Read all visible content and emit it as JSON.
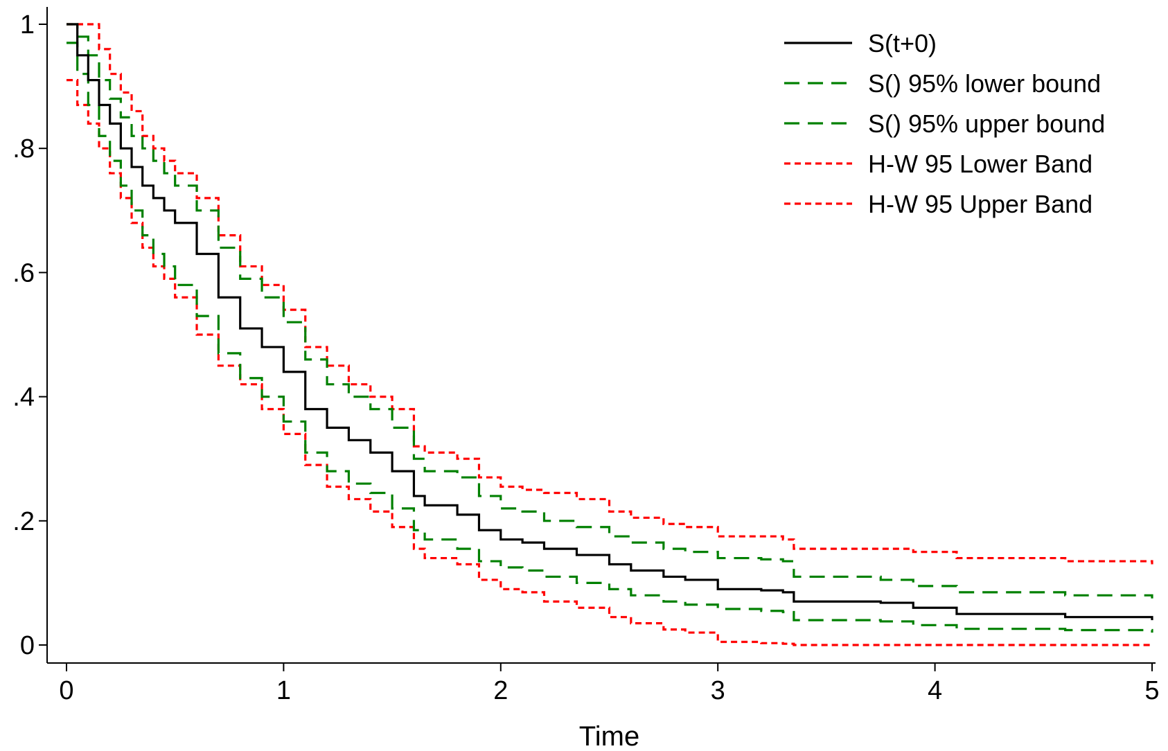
{
  "chart_data": {
    "type": "line",
    "title": "",
    "xlabel": "Time",
    "ylabel": "",
    "xlim": [
      0,
      5
    ],
    "ylim": [
      0,
      1
    ],
    "x_ticks": [
      0,
      1,
      2,
      3,
      4,
      5
    ],
    "x_tick_labels": [
      "0",
      "1",
      "2",
      "3",
      "4",
      "5"
    ],
    "y_ticks": [
      0,
      0.2,
      0.4,
      0.6,
      0.8,
      1
    ],
    "y_tick_labels": [
      "0",
      ".2",
      ".4",
      ".6",
      ".8",
      "1"
    ],
    "grid": false,
    "legend_position": "top-right",
    "step": true,
    "series": [
      {
        "name": "S(t+0)",
        "color": "#000000",
        "style": "solid",
        "x": [
          0,
          0.05,
          0.1,
          0.15,
          0.2,
          0.25,
          0.3,
          0.35,
          0.4,
          0.45,
          0.5,
          0.6,
          0.7,
          0.8,
          0.9,
          1.0,
          1.1,
          1.2,
          1.3,
          1.4,
          1.5,
          1.6,
          1.65,
          1.8,
          1.9,
          2.0,
          2.1,
          2.2,
          2.35,
          2.5,
          2.6,
          2.75,
          2.85,
          3.0,
          3.2,
          3.3,
          3.35,
          3.6,
          3.75,
          3.9,
          4.1,
          4.6,
          5.0
        ],
        "y": [
          1.0,
          0.95,
          0.91,
          0.87,
          0.84,
          0.8,
          0.77,
          0.74,
          0.72,
          0.7,
          0.68,
          0.63,
          0.56,
          0.51,
          0.48,
          0.44,
          0.38,
          0.35,
          0.33,
          0.31,
          0.28,
          0.24,
          0.225,
          0.21,
          0.185,
          0.17,
          0.165,
          0.155,
          0.145,
          0.13,
          0.12,
          0.11,
          0.105,
          0.09,
          0.088,
          0.085,
          0.07,
          0.07,
          0.068,
          0.06,
          0.05,
          0.045,
          0.04
        ]
      },
      {
        "name": "S() 95% lower bound",
        "color": "#008000",
        "style": "dashed",
        "x": [
          0,
          0.05,
          0.1,
          0.15,
          0.2,
          0.25,
          0.3,
          0.35,
          0.4,
          0.45,
          0.5,
          0.6,
          0.7,
          0.8,
          0.9,
          1.0,
          1.1,
          1.2,
          1.3,
          1.4,
          1.5,
          1.6,
          1.65,
          1.8,
          1.9,
          2.0,
          2.1,
          2.2,
          2.35,
          2.5,
          2.6,
          2.75,
          2.85,
          3.0,
          3.2,
          3.3,
          3.35,
          3.6,
          3.75,
          3.9,
          4.1,
          4.6,
          5.0
        ],
        "y": [
          0.97,
          0.92,
          0.87,
          0.82,
          0.78,
          0.74,
          0.7,
          0.66,
          0.63,
          0.61,
          0.58,
          0.53,
          0.47,
          0.43,
          0.4,
          0.36,
          0.31,
          0.28,
          0.26,
          0.245,
          0.22,
          0.185,
          0.17,
          0.155,
          0.135,
          0.125,
          0.12,
          0.11,
          0.1,
          0.09,
          0.08,
          0.07,
          0.065,
          0.058,
          0.055,
          0.053,
          0.04,
          0.04,
          0.038,
          0.032,
          0.026,
          0.024,
          0.02
        ]
      },
      {
        "name": "S() 95% upper bound",
        "color": "#008000",
        "style": "dashed",
        "x": [
          0,
          0.05,
          0.1,
          0.15,
          0.2,
          0.25,
          0.3,
          0.35,
          0.4,
          0.45,
          0.5,
          0.6,
          0.7,
          0.8,
          0.9,
          1.0,
          1.1,
          1.2,
          1.3,
          1.4,
          1.5,
          1.6,
          1.65,
          1.8,
          1.9,
          2.0,
          2.1,
          2.2,
          2.35,
          2.5,
          2.6,
          2.75,
          2.85,
          3.0,
          3.2,
          3.3,
          3.35,
          3.6,
          3.75,
          3.9,
          4.1,
          4.6,
          5.0
        ],
        "y": [
          1.0,
          0.98,
          0.95,
          0.91,
          0.88,
          0.85,
          0.82,
          0.8,
          0.78,
          0.76,
          0.74,
          0.7,
          0.64,
          0.59,
          0.56,
          0.52,
          0.46,
          0.42,
          0.4,
          0.38,
          0.35,
          0.3,
          0.28,
          0.27,
          0.24,
          0.22,
          0.215,
          0.2,
          0.19,
          0.175,
          0.165,
          0.155,
          0.15,
          0.14,
          0.138,
          0.135,
          0.11,
          0.11,
          0.105,
          0.095,
          0.085,
          0.08,
          0.075
        ]
      },
      {
        "name": "H-W 95 Lower Band",
        "color": "#ff0000",
        "style": "dotted",
        "x": [
          0,
          0.05,
          0.1,
          0.15,
          0.2,
          0.25,
          0.3,
          0.35,
          0.4,
          0.45,
          0.5,
          0.6,
          0.7,
          0.8,
          0.9,
          1.0,
          1.1,
          1.2,
          1.3,
          1.4,
          1.5,
          1.6,
          1.65,
          1.8,
          1.9,
          2.0,
          2.1,
          2.2,
          2.35,
          2.5,
          2.6,
          2.75,
          2.85,
          3.0,
          3.2,
          3.3,
          3.35,
          3.6,
          3.75,
          3.9,
          4.1,
          4.6,
          5.0
        ],
        "y": [
          0.91,
          0.87,
          0.84,
          0.8,
          0.76,
          0.72,
          0.68,
          0.64,
          0.61,
          0.59,
          0.56,
          0.5,
          0.45,
          0.42,
          0.38,
          0.34,
          0.29,
          0.255,
          0.235,
          0.215,
          0.19,
          0.155,
          0.14,
          0.13,
          0.105,
          0.09,
          0.085,
          0.07,
          0.06,
          0.045,
          0.035,
          0.025,
          0.02,
          0.005,
          0.003,
          0.002,
          0.0,
          0.0,
          0.0,
          0.0,
          0.0,
          0.0,
          0.0
        ]
      },
      {
        "name": "H-W 95 Upper Band",
        "color": "#ff0000",
        "style": "dotted",
        "x": [
          0,
          0.05,
          0.1,
          0.15,
          0.2,
          0.25,
          0.3,
          0.35,
          0.4,
          0.45,
          0.5,
          0.6,
          0.7,
          0.8,
          0.9,
          1.0,
          1.1,
          1.2,
          1.3,
          1.4,
          1.5,
          1.6,
          1.65,
          1.8,
          1.9,
          2.0,
          2.1,
          2.2,
          2.35,
          2.5,
          2.6,
          2.75,
          2.85,
          3.0,
          3.2,
          3.3,
          3.35,
          3.6,
          3.75,
          3.9,
          4.1,
          4.6,
          5.0
        ],
        "y": [
          1.0,
          1.0,
          1.0,
          0.96,
          0.92,
          0.89,
          0.86,
          0.82,
          0.8,
          0.78,
          0.76,
          0.72,
          0.66,
          0.61,
          0.58,
          0.54,
          0.48,
          0.45,
          0.42,
          0.4,
          0.38,
          0.32,
          0.31,
          0.3,
          0.27,
          0.255,
          0.25,
          0.245,
          0.235,
          0.215,
          0.205,
          0.195,
          0.19,
          0.175,
          0.175,
          0.17,
          0.155,
          0.155,
          0.155,
          0.15,
          0.14,
          0.135,
          0.13
        ]
      }
    ]
  }
}
